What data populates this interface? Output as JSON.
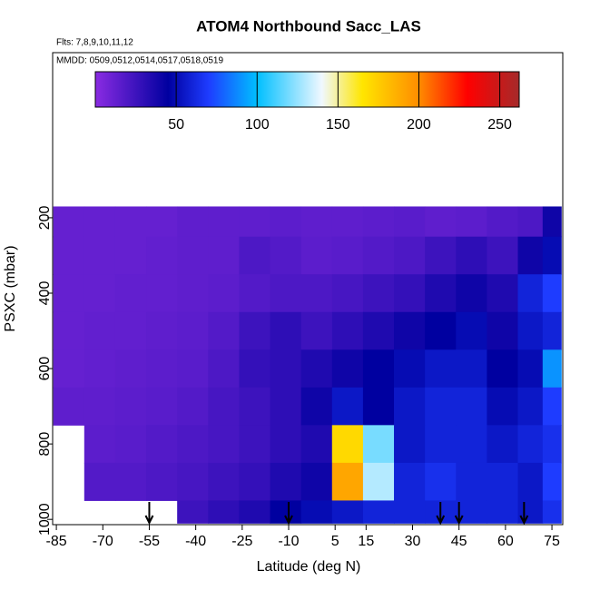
{
  "chart_data": {
    "type": "heatmap",
    "title": "ATOM4 Northbound Sacc_LAS",
    "subtitle": "Flts: 7,8,9,10,11,12",
    "annotation": "MMDD: 0509,0512,0514,0517,0518,0519",
    "x_label": "Latitude (deg N)",
    "y_label": "PSXC (mbar)",
    "xlim": [
      -86.2,
      78.5
    ],
    "ylim": [
      1014,
      -238
    ],
    "xticks": [
      -85,
      -70,
      -55,
      -40,
      -25,
      -10,
      5,
      15,
      30,
      45,
      60,
      75
    ],
    "yticks": [
      200,
      400,
      600,
      800,
      1000
    ],
    "x_edges": [
      -86,
      -76,
      -66,
      -56,
      -46,
      -36,
      -26,
      -16,
      -6,
      4,
      14,
      24,
      34,
      44,
      54,
      64,
      72,
      78
    ],
    "y_edges": [
      170,
      250,
      350,
      450,
      550,
      650,
      750,
      850,
      950,
      1010
    ],
    "values": [
      [
        12,
        12,
        12,
        12,
        14,
        14,
        14,
        15,
        14,
        14,
        15,
        16,
        14,
        15,
        18,
        20,
        40
      ],
      [
        12,
        12,
        12,
        13,
        14,
        14,
        20,
        18,
        15,
        16,
        18,
        20,
        25,
        30,
        25,
        40,
        50
      ],
      [
        12,
        12,
        13,
        13,
        14,
        15,
        18,
        20,
        20,
        22,
        25,
        28,
        35,
        40,
        35,
        60,
        70
      ],
      [
        12,
        13,
        13,
        14,
        15,
        18,
        25,
        30,
        25,
        30,
        35,
        40,
        45,
        50,
        40,
        55,
        60
      ],
      [
        12,
        13,
        14,
        15,
        16,
        20,
        28,
        30,
        35,
        40,
        45,
        50,
        55,
        55,
        45,
        50,
        90
      ],
      [
        14,
        14,
        15,
        16,
        18,
        22,
        25,
        30,
        40,
        55,
        45,
        55,
        60,
        60,
        50,
        55,
        70
      ],
      [
        null,
        15,
        16,
        18,
        20,
        22,
        25,
        30,
        35,
        170,
        120,
        55,
        60,
        60,
        55,
        60,
        65
      ],
      [
        null,
        18,
        18,
        20,
        22,
        25,
        28,
        35,
        40,
        190,
        130,
        60,
        65,
        60,
        60,
        55,
        70
      ],
      [
        null,
        null,
        null,
        null,
        25,
        30,
        35,
        45,
        50,
        55,
        60,
        60,
        60,
        60,
        60,
        55,
        65
      ]
    ],
    "clim": [
      0,
      262
    ],
    "cticks": [
      50,
      100,
      150,
      200,
      250
    ],
    "colorscale": [
      [
        0,
        "#8a2be2"
      ],
      [
        45,
        "#0000a0"
      ],
      [
        70,
        "#1e3cff"
      ],
      [
        100,
        "#00bfff"
      ],
      [
        140,
        "#f0f8ff"
      ],
      [
        165,
        "#ffe600"
      ],
      [
        200,
        "#ff8c00"
      ],
      [
        230,
        "#ff0000"
      ],
      [
        262,
        "#a52a2a"
      ]
    ],
    "arrows": [
      -55,
      -10,
      39,
      45,
      66
    ]
  }
}
